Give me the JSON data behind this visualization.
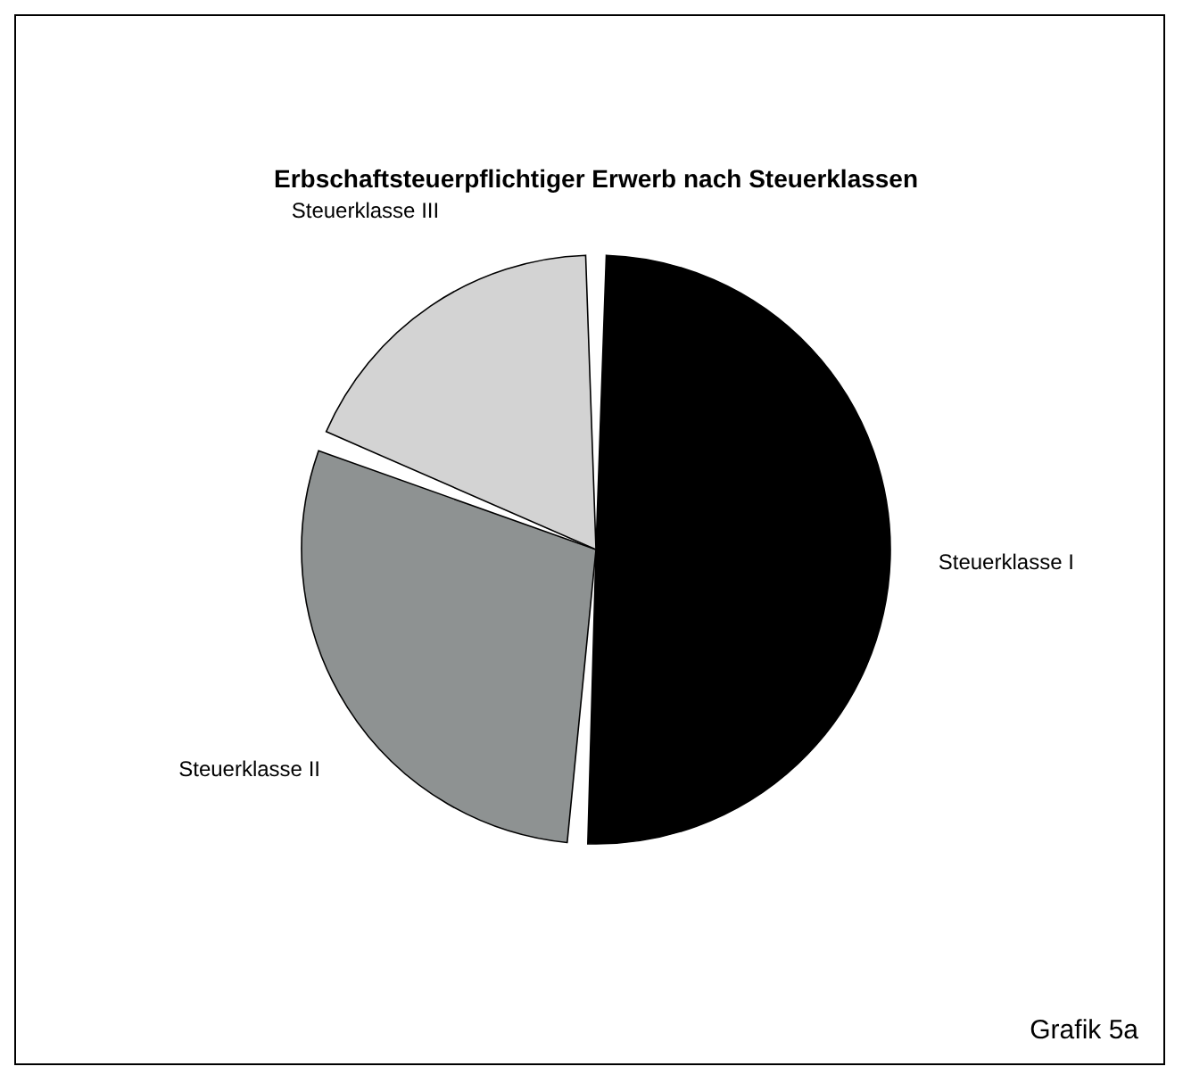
{
  "chart_data": {
    "type": "pie",
    "title": "Erbschaftsteuerpflichtiger Erwerb nach Steuerklassen",
    "categories": [
      "Steuerklasse I",
      "Steuerklasse II",
      "Steuerklasse III"
    ],
    "values": [
      51,
      30,
      19
    ],
    "colors": [
      "#000000",
      "#8e9292",
      "#d3d3d3"
    ],
    "legend": false,
    "annotations": [
      "Grafik 5a"
    ]
  }
}
